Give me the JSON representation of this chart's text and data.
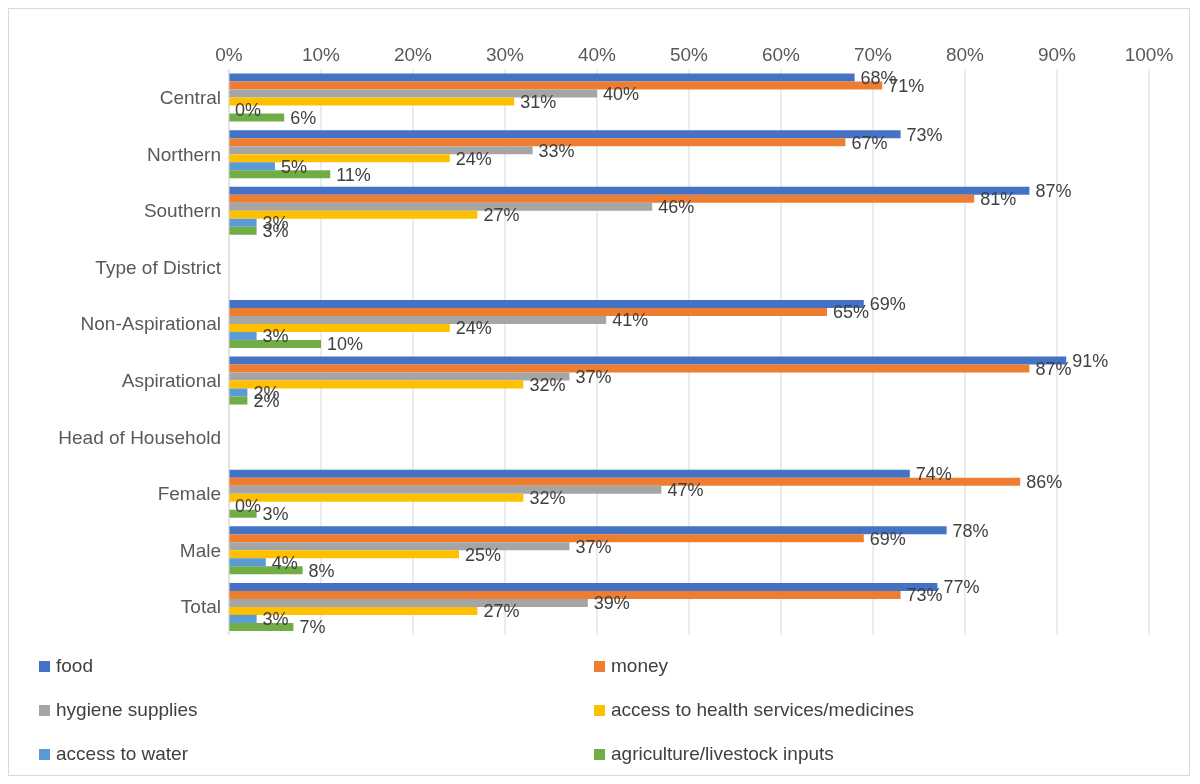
{
  "chart_data": {
    "type": "bar",
    "orientation": "horizontal",
    "categories": [
      "Central",
      "Northern",
      "Southern",
      "Type of District",
      "Non-Aspirational",
      "Aspirational",
      "Head of Household",
      "Female",
      "Male",
      "Total"
    ],
    "series": [
      {
        "name": "food",
        "color": "#4472c4",
        "values": [
          68,
          73,
          87,
          null,
          69,
          91,
          null,
          74,
          78,
          77
        ],
        "value_labels": [
          "68%",
          "73%",
          "87%",
          null,
          "69%",
          "91%",
          null,
          "74%",
          "78%",
          "77%"
        ]
      },
      {
        "name": "money",
        "color": "#ed7d31",
        "values": [
          71,
          67,
          81,
          null,
          65,
          87,
          null,
          86,
          69,
          73
        ],
        "value_labels": [
          "71%",
          "67%",
          "81%",
          null,
          "65%",
          "87%",
          null,
          "86%",
          "69%",
          "73%"
        ]
      },
      {
        "name": "hygiene supplies",
        "color": "#a5a5a5",
        "values": [
          40,
          33,
          46,
          null,
          41,
          37,
          null,
          47,
          37,
          39
        ],
        "value_labels": [
          "40%",
          "33%",
          "46%",
          null,
          "41%",
          "37%",
          null,
          "47%",
          "37%",
          "39%"
        ]
      },
      {
        "name": "access to health services/medicines",
        "color": "#ffc000",
        "values": [
          31,
          24,
          27,
          null,
          24,
          32,
          null,
          32,
          25,
          27
        ],
        "value_labels": [
          "31%",
          "24%",
          "27%",
          null,
          "24%",
          "32%",
          null,
          "32%",
          "25%",
          "27%"
        ]
      },
      {
        "name": "access to water",
        "color": "#5b9bd5",
        "values": [
          0,
          5,
          3,
          null,
          3,
          2,
          null,
          0,
          4,
          3
        ],
        "value_labels": [
          "0%",
          "5%",
          "3%",
          null,
          "3%",
          "2%",
          null,
          "0%",
          "4%",
          "3%"
        ]
      },
      {
        "name": "agriculture/livestock inputs",
        "color": "#70ad47",
        "values": [
          6,
          11,
          3,
          null,
          10,
          2,
          null,
          3,
          8,
          7
        ],
        "value_labels": [
          "6%",
          "11%",
          "3%",
          null,
          "10%",
          "2%",
          null,
          "3%",
          "8%",
          "7%"
        ]
      }
    ],
    "xlim": [
      0,
      100
    ],
    "xticks": [
      {
        "value": 0,
        "label": "0%"
      },
      {
        "value": 10,
        "label": "10%"
      },
      {
        "value": 20,
        "label": "20%"
      },
      {
        "value": 30,
        "label": "30%"
      },
      {
        "value": 40,
        "label": "40%"
      },
      {
        "value": 50,
        "label": "50%"
      },
      {
        "value": 60,
        "label": "60%"
      },
      {
        "value": 70,
        "label": "70%"
      },
      {
        "value": 80,
        "label": "80%"
      },
      {
        "value": 90,
        "label": "90%"
      },
      {
        "value": 100,
        "label": "100%"
      }
    ],
    "grid": "x",
    "legend": "bottom"
  }
}
